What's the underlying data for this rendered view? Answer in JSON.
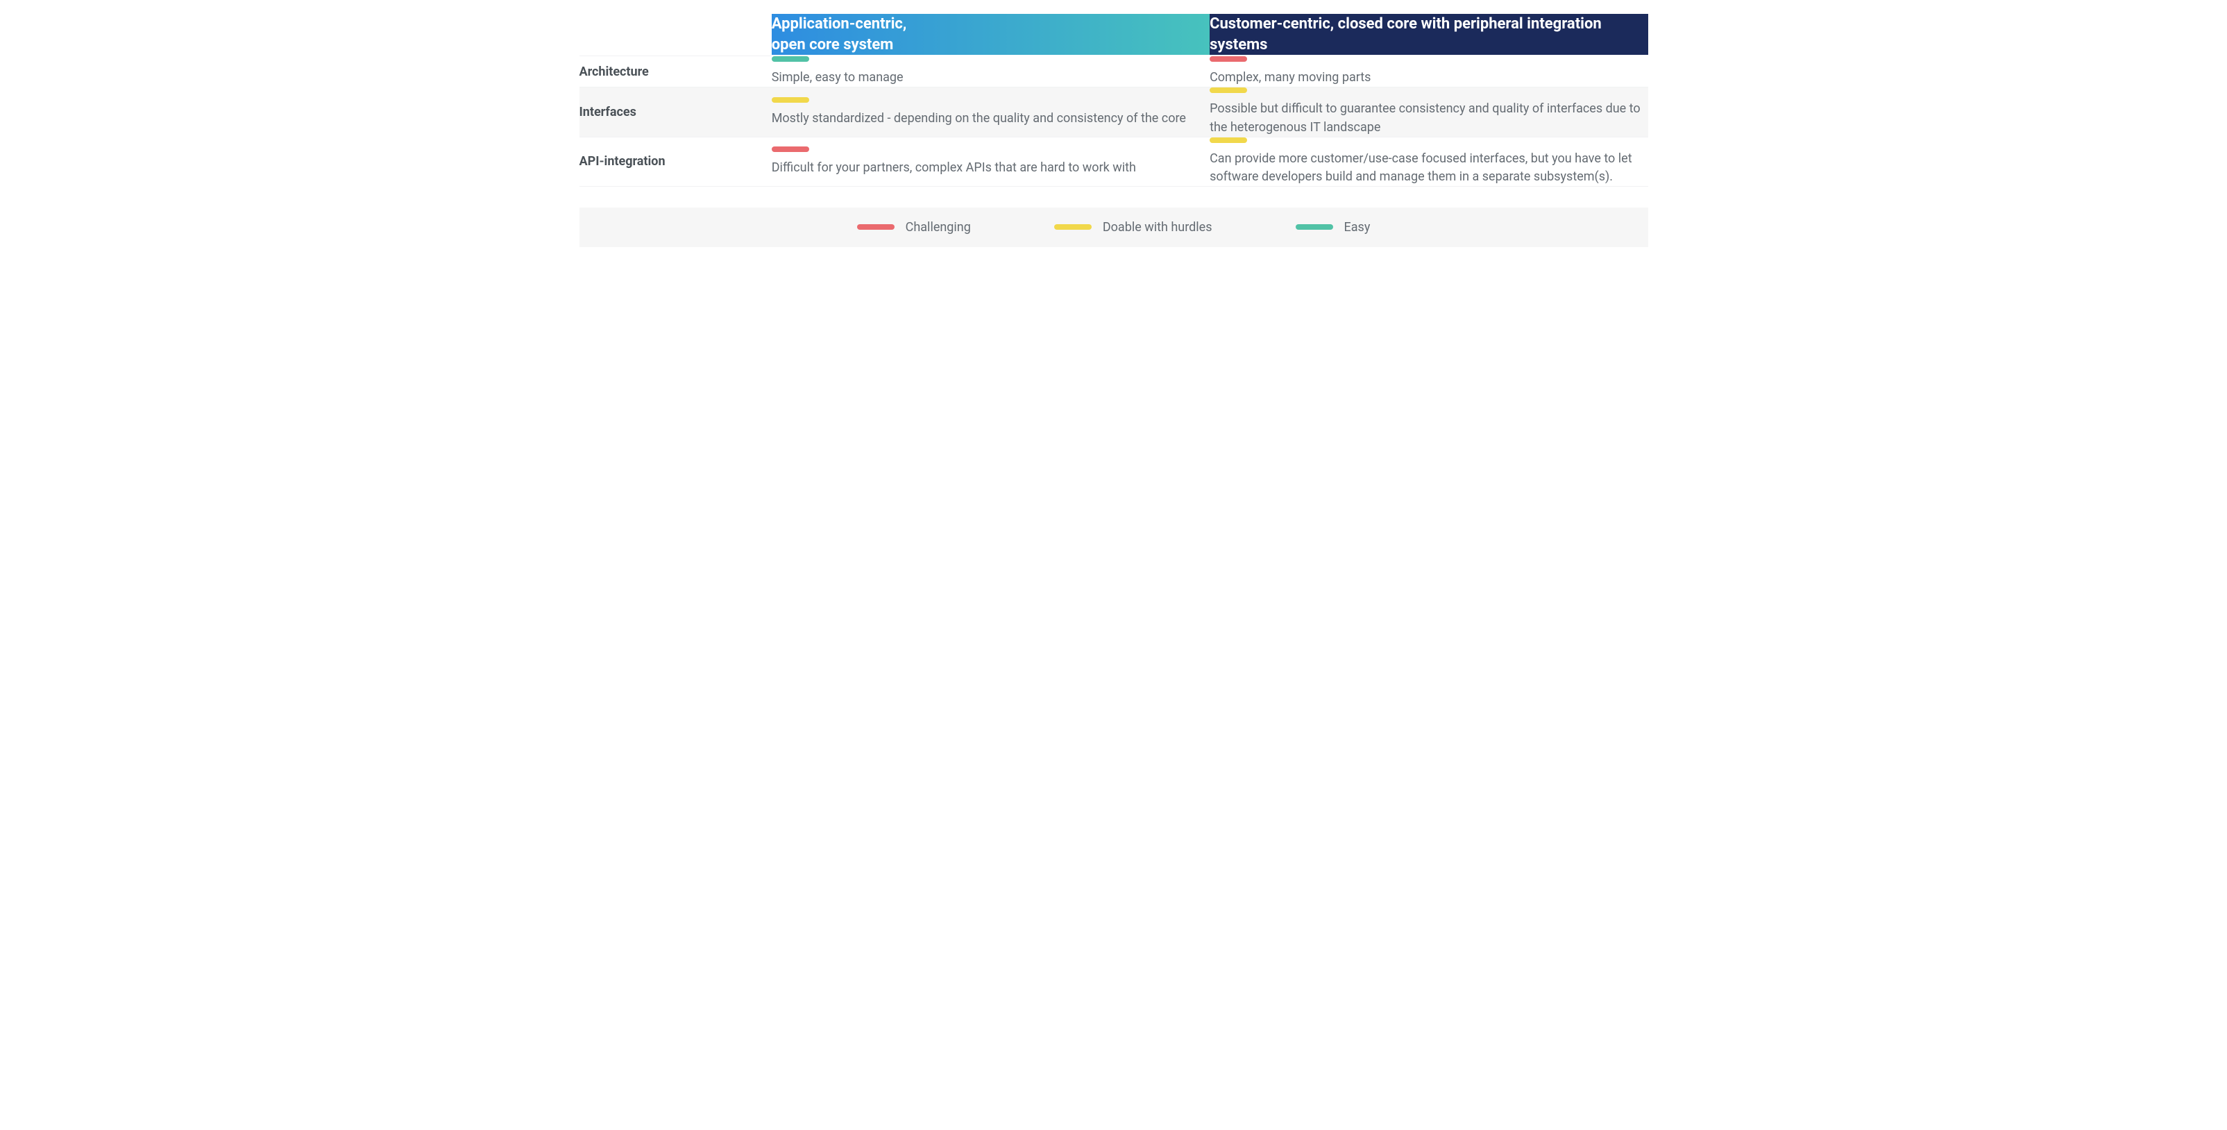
{
  "colors": {
    "challenging": "#ea6a6e",
    "doable": "#f1d84b",
    "easy": "#51c2a6",
    "header_a_grad_start": "#2e8de1",
    "header_a_grad_end": "#47c2bd",
    "header_b_bg": "#1b2a5b",
    "row_alt_bg": "#f6f6f6",
    "text_primary": "#4a5157",
    "text_body": "#646b72",
    "border": "#f1f2f3"
  },
  "typography": {
    "header_fontsize_pt": 17,
    "label_fontsize_pt": 14,
    "body_fontsize_pt": 14,
    "legend_fontsize_pt": 14,
    "header_weight": 700,
    "label_weight": 700,
    "body_weight": 400
  },
  "table": {
    "type": "comparison-table",
    "column_widths": [
      "18%",
      "41%",
      "41%"
    ],
    "headers": {
      "col_a": "Application-centric,\nopen core system",
      "col_b": "Customer-centric, closed core with peripheral integration systems"
    },
    "rows": [
      {
        "label": "Architecture",
        "bg": "odd",
        "col_a": {
          "rating": "easy",
          "text": "Simple, easy to manage"
        },
        "col_b": {
          "rating": "challenging",
          "text": "Complex, many moving parts"
        }
      },
      {
        "label": "Interfaces",
        "bg": "even",
        "col_a": {
          "rating": "doable",
          "text": "Mostly standardized - depending on the quality and consistency of the core"
        },
        "col_b": {
          "rating": "doable",
          "text": "Possible but difficult to guarantee consistency and quality of interfaces due to the heterogenous IT landscape"
        }
      },
      {
        "label": "API-integration",
        "bg": "odd",
        "col_a": {
          "rating": "challenging",
          "text": "Difficult for your partners, complex APIs that are hard to work with"
        },
        "col_b": {
          "rating": "doable",
          "text": "Can provide more customer/use-case focused interfaces, but you have to let software developers build and manage them in a separate subsystem(s)."
        }
      }
    ]
  },
  "legend": {
    "items": [
      {
        "key": "challenging",
        "label": "Challenging"
      },
      {
        "key": "doable",
        "label": "Doable with hurdles"
      },
      {
        "key": "easy",
        "label": "Easy"
      }
    ]
  }
}
